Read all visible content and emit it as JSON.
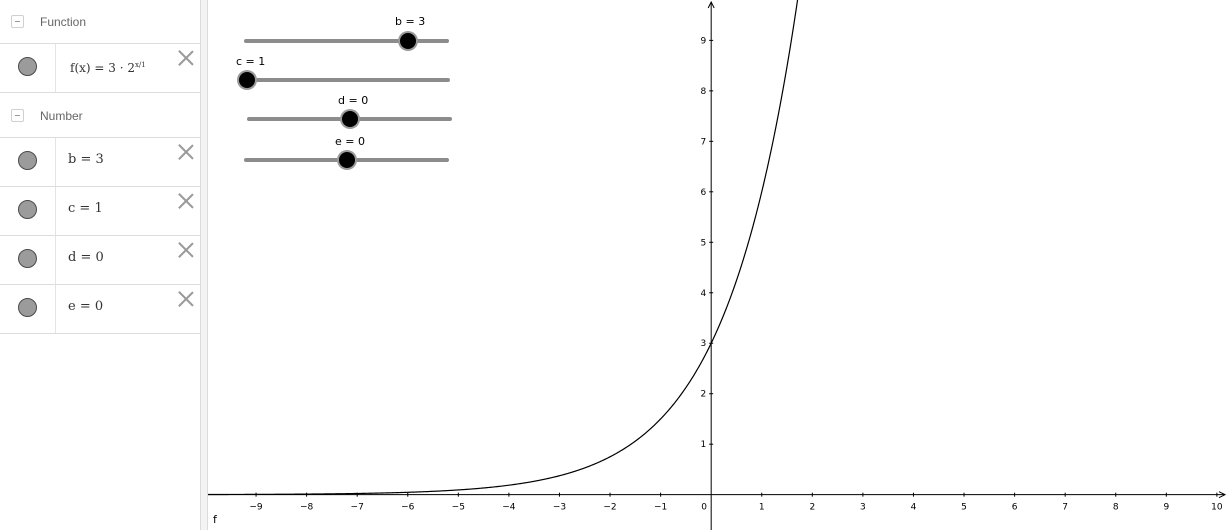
{
  "algebra": {
    "groups": [
      {
        "label": "Function",
        "items": [
          {
            "name": "f",
            "expr": "f(x) = 3 · 2^(x/1)",
            "display": "f(x)  =  3 · 2"
          }
        ]
      },
      {
        "label": "Number",
        "items": [
          {
            "name": "b",
            "expr": "b = 3"
          },
          {
            "name": "c",
            "expr": "c = 1"
          },
          {
            "name": "d",
            "expr": "d = 0"
          },
          {
            "name": "e",
            "expr": "e = 0"
          }
        ]
      }
    ]
  },
  "sliders": [
    {
      "label": "b = 3",
      "value": 3,
      "min": -5,
      "max": 5
    },
    {
      "label": "c = 1",
      "value": 1,
      "min": 1,
      "max": 5
    },
    {
      "label": "d = 0",
      "value": 0,
      "min": -5,
      "max": 5
    },
    {
      "label": "e = 0",
      "value": 0,
      "min": -5,
      "max": 5
    }
  ],
  "graph": {
    "function_label": "f",
    "x_ticks": [
      "-9",
      "-8",
      "-7",
      "-6",
      "-5",
      "-4",
      "-3",
      "-2",
      "-1",
      "0",
      "1",
      "2",
      "3",
      "4",
      "5",
      "6",
      "7",
      "8",
      "9",
      "10"
    ],
    "y_ticks": [
      "1",
      "2",
      "3",
      "4",
      "5",
      "6",
      "7",
      "8",
      "9"
    ],
    "xlim": [
      -9.95,
      10.2
    ],
    "ylim": [
      -0.7,
      9.8
    ]
  },
  "colors": {
    "curve": "#000000",
    "marble": "#9b9b9b",
    "slider_track": "#8c8c8c",
    "slider_knob": "#000000"
  }
}
